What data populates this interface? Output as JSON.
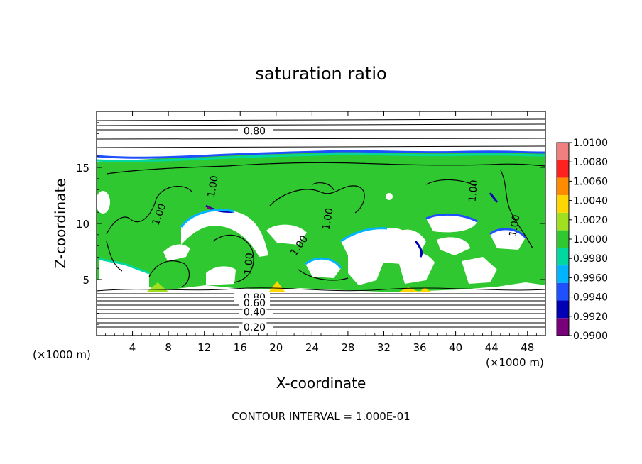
{
  "chart_data": {
    "type": "heatmap",
    "title": "saturation ratio",
    "xlabel": "X-coordinate",
    "ylabel": "Z-coordinate",
    "x_unit_left": "(×1000 m)",
    "x_unit_right": "(×1000 m)",
    "xlim": [
      0,
      50
    ],
    "ylim": [
      0,
      20
    ],
    "x_ticks": [
      4,
      8,
      12,
      16,
      20,
      24,
      28,
      32,
      36,
      40,
      44,
      48
    ],
    "y_ticks": [
      5,
      10,
      15
    ],
    "footer": "CONTOUR INTERVAL = 1.000E-01",
    "colorbar": {
      "levels": [
        "1.0100",
        "1.0080",
        "1.0060",
        "1.0040",
        "1.0020",
        "1.0000",
        "0.9980",
        "0.9960",
        "0.9940",
        "0.9920",
        "0.9900"
      ],
      "colors": [
        "#f08080",
        "#ff2020",
        "#ff8c00",
        "#ffd700",
        "#a0e020",
        "#30c830",
        "#00d8a0",
        "#00b4ff",
        "#1e50ff",
        "#0000b4",
        "#780078"
      ]
    },
    "contour_labels": [
      {
        "text": "0.80",
        "x": 17.6,
        "z": 18.2
      },
      {
        "text": "0.80",
        "x": 17.6,
        "z": 3.35
      },
      {
        "text": "0.60",
        "x": 17.6,
        "z": 2.85
      },
      {
        "text": "0.40",
        "x": 17.6,
        "z": 2.05
      },
      {
        "text": "0.20",
        "x": 17.6,
        "z": 0.7
      },
      {
        "text": "1.00",
        "x": 13.0,
        "z": 13.3,
        "rot": -80
      },
      {
        "text": "1.00",
        "x": 7.0,
        "z": 10.8,
        "rot": -70
      },
      {
        "text": "1.00",
        "x": 25.8,
        "z": 10.4,
        "rot": -80
      },
      {
        "text": "1.00",
        "x": 22.6,
        "z": 8.0,
        "rot": -55
      },
      {
        "text": "1.00",
        "x": 17.0,
        "z": 6.4,
        "rot": -85
      },
      {
        "text": "1.00",
        "x": 42.0,
        "z": 12.9,
        "rot": -85
      },
      {
        "text": "1.00",
        "x": 46.6,
        "z": 9.8,
        "rot": -80
      }
    ]
  }
}
